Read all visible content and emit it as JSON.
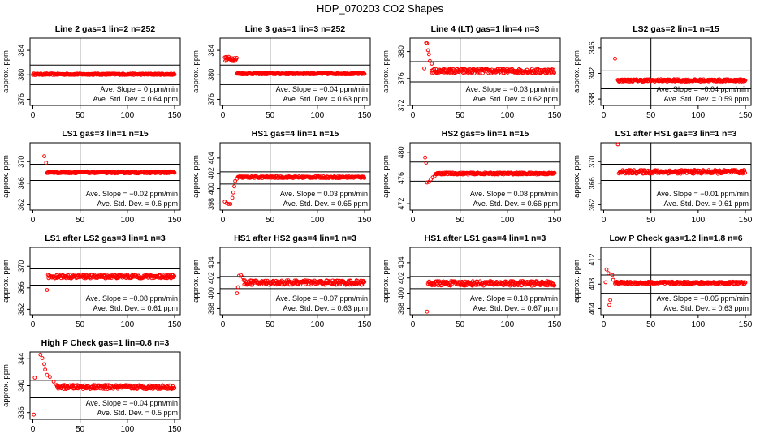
{
  "figure": {
    "title": "HDP_070203  CO2 Shapes",
    "ylabel": "approx. ppm",
    "slope_label": "Ave. Slope =",
    "slope_unit": "ppm/min",
    "std_label": "Ave. Std. Dev. =",
    "std_unit": "ppm",
    "point_color": "#ff0000"
  },
  "chart_data": [
    {
      "type": "scatter",
      "title": "Line 2 gas=1 lin=2 n=252",
      "xlim": [
        0,
        150
      ],
      "ylim": [
        375,
        386
      ],
      "yticks": [
        376,
        380,
        384
      ],
      "xticks": [
        0,
        50,
        100,
        150
      ],
      "hlines": [
        381.6,
        378.4
      ],
      "vline": 50,
      "slope": "0",
      "std": "0.64",
      "x_range": [
        0,
        150
      ],
      "series": [
        {
          "name": "trace",
          "x_step": 0.6,
          "start": 380.1,
          "start_x": 0,
          "level": 380.1,
          "noise": 0.12,
          "flat": true
        }
      ]
    },
    {
      "type": "scatter",
      "title": "Line 3 gas=1 lin=3 n=252",
      "xlim": [
        0,
        150
      ],
      "ylim": [
        375,
        386
      ],
      "yticks": [
        376,
        380,
        384
      ],
      "xticks": [
        0,
        50,
        100,
        150
      ],
      "hlines": [
        381.6,
        378.4
      ],
      "vline": 50,
      "slope": "−0.04",
      "std": "0.63",
      "series": [
        {
          "name": "trace",
          "segments": [
            {
              "x0": 2,
              "x1": 15,
              "level": 382.6,
              "noise": 0.35
            },
            {
              "x0": 15,
              "x1": 150,
              "level": 380.2,
              "noise": 0.12
            }
          ]
        }
      ]
    },
    {
      "type": "scatter",
      "title": "Line 4 (LT) gas=1 lin=4 n=3",
      "xlim": [
        0,
        150
      ],
      "ylim": [
        372,
        382
      ],
      "yticks": [
        372,
        376,
        380
      ],
      "xticks": [
        0,
        50,
        100,
        150
      ],
      "hlines": [
        378.5,
        375.5
      ],
      "vline": 50,
      "slope": "−0.03",
      "std": "0.62",
      "series": [
        {
          "name": "trace",
          "spike": [
            {
              "x": 12,
              "y": 377.5
            },
            {
              "x": 14,
              "y": 381.3
            },
            {
              "x": 15,
              "y": 381.2
            },
            {
              "x": 16,
              "y": 380.2
            },
            {
              "x": 17,
              "y": 379.6
            },
            {
              "x": 18,
              "y": 378.6
            },
            {
              "x": 20,
              "y": 378.2
            }
          ],
          "segments": [
            {
              "x0": 20,
              "x1": 150,
              "level": 377.1,
              "noise": 0.35
            }
          ]
        }
      ]
    },
    {
      "type": "scatter",
      "title": "LS2 gas=2 lin=1 n=15",
      "xlim": [
        0,
        150
      ],
      "ylim": [
        337,
        347.5
      ],
      "yticks": [
        338,
        342,
        346
      ],
      "xticks": [
        0,
        50,
        100,
        150
      ],
      "hlines": [
        342.4,
        339.6
      ],
      "vline": 50,
      "slope": "−0.04",
      "std": "0.59",
      "series": [
        {
          "name": "trace",
          "spike": [
            {
              "x": 12,
              "y": 344.3
            }
          ],
          "segments": [
            {
              "x0": 15,
              "x1": 150,
              "level": 340.9,
              "noise": 0.18
            }
          ]
        }
      ]
    },
    {
      "type": "scatter",
      "title": "LS1 gas=3 lin=1 n=15",
      "xlim": [
        0,
        150
      ],
      "ylim": [
        361,
        373.5
      ],
      "yticks": [
        362,
        366,
        370
      ],
      "xticks": [
        0,
        50,
        100,
        150
      ],
      "hlines": [
        369.5,
        366.5
      ],
      "vline": 50,
      "slope": "−0.02",
      "std": "0.6",
      "series": [
        {
          "name": "trace",
          "spike": [
            {
              "x": 12,
              "y": 371
            },
            {
              "x": 14,
              "y": 369.8
            }
          ],
          "segments": [
            {
              "x0": 15,
              "x1": 150,
              "level": 368,
              "noise": 0.18
            }
          ]
        }
      ]
    },
    {
      "type": "scatter",
      "title": "HS1 gas=4 lin=1 n=15",
      "xlim": [
        0,
        150
      ],
      "ylim": [
        397.2,
        406
      ],
      "yticks": [
        398,
        400,
        402,
        404
      ],
      "xticks": [
        0,
        50,
        100,
        150
      ],
      "hlines": [
        402.2,
        400.6
      ],
      "vline": 50,
      "slope": "0.03",
      "std": "0.65",
      "series": [
        {
          "name": "trace",
          "spike": [
            {
              "x": 2,
              "y": 398.3
            },
            {
              "x": 4,
              "y": 398.1
            },
            {
              "x": 6,
              "y": 398
            },
            {
              "x": 8,
              "y": 398
            },
            {
              "x": 10,
              "y": 398.8
            },
            {
              "x": 11,
              "y": 399.5
            },
            {
              "x": 12,
              "y": 400.3
            },
            {
              "x": 13,
              "y": 401
            },
            {
              "x": 15,
              "y": 401.3
            }
          ],
          "segments": [
            {
              "x0": 16,
              "x1": 150,
              "level": 401.5,
              "noise": 0.12
            }
          ]
        }
      ]
    },
    {
      "type": "scatter",
      "title": "HS2 gas=5 lin=1 n=15",
      "xlim": [
        0,
        150
      ],
      "ylim": [
        471,
        481.5
      ],
      "yticks": [
        472,
        476,
        480
      ],
      "xticks": [
        0,
        50,
        100,
        150
      ],
      "hlines": [
        478.5,
        475.5
      ],
      "vline": 50,
      "slope": "0.08",
      "std": "0.66",
      "series": [
        {
          "name": "trace",
          "spike": [
            {
              "x": 13,
              "y": 479.2
            },
            {
              "x": 14,
              "y": 478.4
            },
            {
              "x": 15,
              "y": 475.3
            },
            {
              "x": 17,
              "y": 475.4
            },
            {
              "x": 19,
              "y": 475.8
            },
            {
              "x": 21,
              "y": 476.1
            },
            {
              "x": 23,
              "y": 476.3
            }
          ],
          "segments": [
            {
              "x0": 24,
              "x1": 150,
              "level": 476.7,
              "noise": 0.15
            }
          ]
        }
      ]
    },
    {
      "type": "scatter",
      "title": "LS1 after HS1 gas=3 lin=1 n=3",
      "xlim": [
        0,
        150
      ],
      "ylim": [
        361,
        373.5
      ],
      "yticks": [
        362,
        366,
        370
      ],
      "xticks": [
        0,
        50,
        100,
        150
      ],
      "hlines": [
        369.5,
        366.5
      ],
      "vline": 50,
      "slope": "−0.01",
      "std": "0.61",
      "series": [
        {
          "name": "trace",
          "spike": [
            {
              "x": 15,
              "y": 373.2
            },
            {
              "x": 16,
              "y": 367.8
            }
          ],
          "segments": [
            {
              "x0": 17,
              "x1": 150,
              "level": 368.1,
              "noise": 0.35
            }
          ]
        }
      ]
    },
    {
      "type": "scatter",
      "title": "LS1 after LS2 gas=3 lin=1 n=3",
      "xlim": [
        0,
        150
      ],
      "ylim": [
        361,
        373.5
      ],
      "yticks": [
        362,
        366,
        370
      ],
      "xticks": [
        0,
        50,
        100,
        150
      ],
      "hlines": [
        369.5,
        366.5
      ],
      "vline": 50,
      "slope": "−0.08",
      "std": "0.61",
      "series": [
        {
          "name": "trace",
          "spike": [
            {
              "x": 15,
              "y": 365.6
            }
          ],
          "segments": [
            {
              "x0": 16,
              "x1": 150,
              "level": 368.1,
              "noise": 0.35
            }
          ]
        }
      ]
    },
    {
      "type": "scatter",
      "title": "HS1 after HS2 gas=4 lin=1 n=3",
      "xlim": [
        0,
        150
      ],
      "ylim": [
        397.2,
        406
      ],
      "yticks": [
        398,
        400,
        402,
        404
      ],
      "xticks": [
        0,
        50,
        100,
        150
      ],
      "hlines": [
        402.2,
        400.6
      ],
      "vline": 50,
      "slope": "−0.07",
      "std": "0.63",
      "series": [
        {
          "name": "trace",
          "spike": [
            {
              "x": 15,
              "y": 400
            },
            {
              "x": 16,
              "y": 400.8
            },
            {
              "x": 17,
              "y": 402.3
            },
            {
              "x": 19,
              "y": 402.4
            },
            {
              "x": 21,
              "y": 402.1
            }
          ],
          "segments": [
            {
              "x0": 22,
              "x1": 150,
              "level": 401.4,
              "noise": 0.3
            }
          ]
        }
      ]
    },
    {
      "type": "scatter",
      "title": "HS1 after LS1 gas=4 lin=1 n=3",
      "xlim": [
        0,
        150
      ],
      "ylim": [
        397.2,
        406
      ],
      "yticks": [
        398,
        400,
        402,
        404
      ],
      "xticks": [
        0,
        50,
        100,
        150
      ],
      "hlines": [
        402.2,
        400.6
      ],
      "vline": 50,
      "slope": "0.18",
      "std": "0.67",
      "series": [
        {
          "name": "trace",
          "spike": [
            {
              "x": 15,
              "y": 397.6
            }
          ],
          "segments": [
            {
              "x0": 16,
              "x1": 150,
              "level": 401.3,
              "noise": 0.3
            }
          ]
        }
      ]
    },
    {
      "type": "scatter",
      "title": "Low P Check gas=1.2 lin=1.8 n=6",
      "xlim": [
        0,
        150
      ],
      "ylim": [
        403,
        414
      ],
      "yticks": [
        404,
        408,
        412
      ],
      "xticks": [
        0,
        50,
        100,
        150
      ],
      "hlines": [
        409.5,
        406.5
      ],
      "vline": 50,
      "slope": "−0.05",
      "std": "0.63",
      "series": [
        {
          "name": "trace",
          "spike": [
            {
              "x": 2,
              "y": 408.3
            },
            {
              "x": 3,
              "y": 410.4
            },
            {
              "x": 5,
              "y": 409.8
            },
            {
              "x": 6,
              "y": 404.6
            },
            {
              "x": 7,
              "y": 405.4
            },
            {
              "x": 9,
              "y": 409.5
            },
            {
              "x": 10,
              "y": 408.7
            }
          ],
          "segments": [
            {
              "x0": 12,
              "x1": 150,
              "level": 408.2,
              "noise": 0.2
            }
          ]
        }
      ]
    },
    {
      "type": "scatter",
      "title": "High P Check gas=1 lin=0.8 n=3",
      "xlim": [
        0,
        150
      ],
      "ylim": [
        335,
        345
      ],
      "yticks": [
        336,
        340,
        344
      ],
      "xticks": [
        0,
        50,
        100,
        150
      ],
      "hlines": [
        340.8,
        338.2
      ],
      "vline": 50,
      "slope": "−0.04",
      "std": "0.5",
      "series": [
        {
          "name": "trace",
          "spike": [
            {
              "x": 1,
              "y": 335.7
            },
            {
              "x": 2,
              "y": 341.2
            },
            {
              "x": 8,
              "y": 344.6
            },
            {
              "x": 10,
              "y": 344.1
            },
            {
              "x": 12,
              "y": 343.2
            },
            {
              "x": 13,
              "y": 342.4
            },
            {
              "x": 15,
              "y": 341.6
            },
            {
              "x": 18,
              "y": 341.3
            },
            {
              "x": 22,
              "y": 340.6
            }
          ],
          "segments": [
            {
              "x0": 25,
              "x1": 150,
              "level": 339.8,
              "noise": 0.3
            }
          ]
        }
      ]
    }
  ]
}
